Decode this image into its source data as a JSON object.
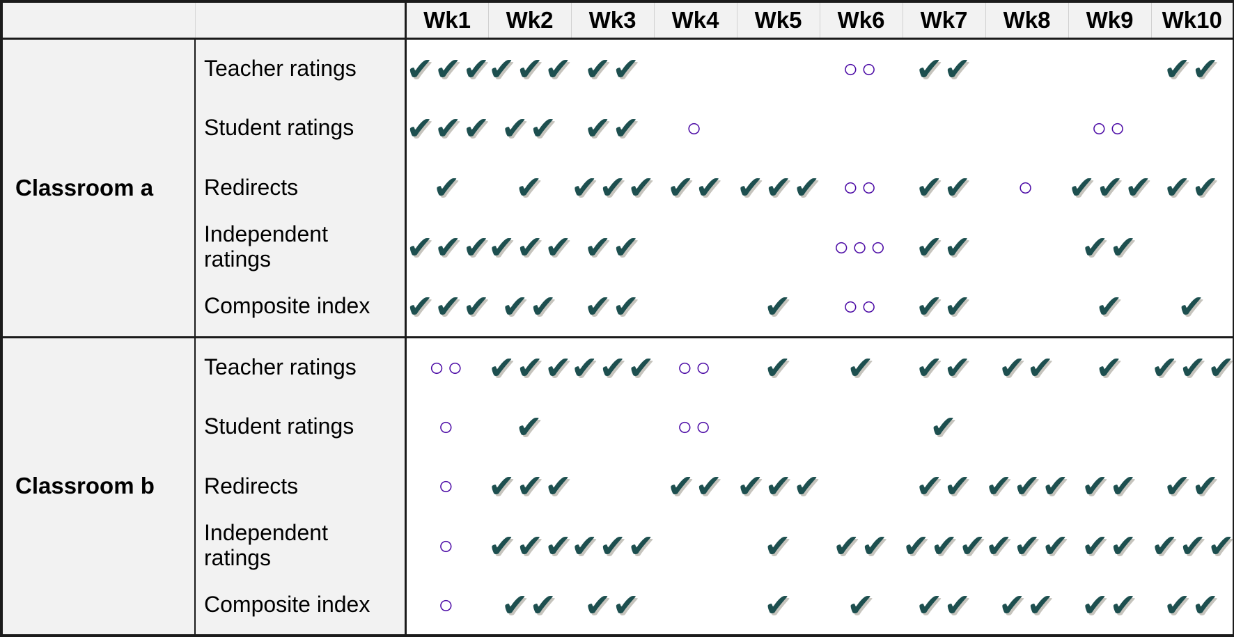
{
  "chart_data": {
    "type": "table",
    "corner_label": "",
    "week_headers": [
      "Wk1",
      "Wk2",
      "Wk3",
      "Wk4",
      "Wk5",
      "Wk6",
      "Wk7",
      "Wk8",
      "Wk9",
      "Wk10"
    ],
    "symbol_legend": {
      "check": "✔",
      "open_circle": "○"
    },
    "groups": [
      {
        "label": "Classroom a",
        "rows": [
          {
            "label": "Teacher ratings",
            "cells": [
              "✔✔✔",
              "✔✔✔",
              "✔✔",
              "",
              "",
              "○○",
              "✔✔",
              "",
              "",
              "✔✔"
            ]
          },
          {
            "label": "Student ratings",
            "cells": [
              "✔✔✔",
              "✔✔",
              "✔✔",
              "○",
              "",
              "",
              "",
              "",
              "○○",
              ""
            ]
          },
          {
            "label": "Redirects",
            "cells": [
              "✔",
              "✔",
              "✔✔✔",
              "✔✔",
              "✔✔✔",
              "○○",
              "✔✔",
              "○",
              "✔✔✔",
              "✔✔"
            ]
          },
          {
            "label": "Independent ratings",
            "cells": [
              "✔✔✔",
              "✔✔✔",
              "✔✔",
              "",
              "",
              "○○○",
              "✔✔",
              "",
              "✔✔",
              ""
            ]
          },
          {
            "label": "Composite index",
            "cells": [
              "✔✔✔",
              "✔✔",
              "✔✔",
              "",
              "✔",
              "○○",
              "✔✔",
              "",
              "✔",
              "✔"
            ]
          }
        ]
      },
      {
        "label": "Classroom b",
        "rows": [
          {
            "label": "Teacher ratings",
            "cells": [
              "○○",
              "✔✔✔",
              "✔✔✔",
              "○○",
              "✔",
              "✔",
              "✔✔",
              "✔✔",
              "✔",
              "✔✔✔"
            ]
          },
          {
            "label": "Student ratings",
            "cells": [
              "○",
              "✔",
              "",
              "○○",
              "",
              "",
              "✔",
              "",
              "",
              ""
            ]
          },
          {
            "label": "Redirects",
            "cells": [
              "○",
              "✔✔✔",
              "",
              "✔✔",
              "✔✔✔",
              "",
              "✔✔",
              "✔✔✔",
              "✔✔",
              "✔✔"
            ]
          },
          {
            "label": "Independent ratings",
            "cells": [
              "○",
              "✔✔✔",
              "✔✔✔",
              "",
              "✔",
              "✔✔",
              "✔✔✔",
              "✔✔✔",
              "✔✔",
              "✔✔✔"
            ]
          },
          {
            "label": "Composite index",
            "cells": [
              "○",
              "✔✔",
              "✔✔",
              "",
              "✔",
              "✔",
              "✔✔",
              "✔✔",
              "✔✔",
              "✔✔"
            ]
          }
        ]
      }
    ],
    "colors": {
      "check": "#1d4f4f",
      "open_circle": "#4b0aa5",
      "label_background": "#f2f2f2",
      "border": "#1b1b1b"
    }
  }
}
